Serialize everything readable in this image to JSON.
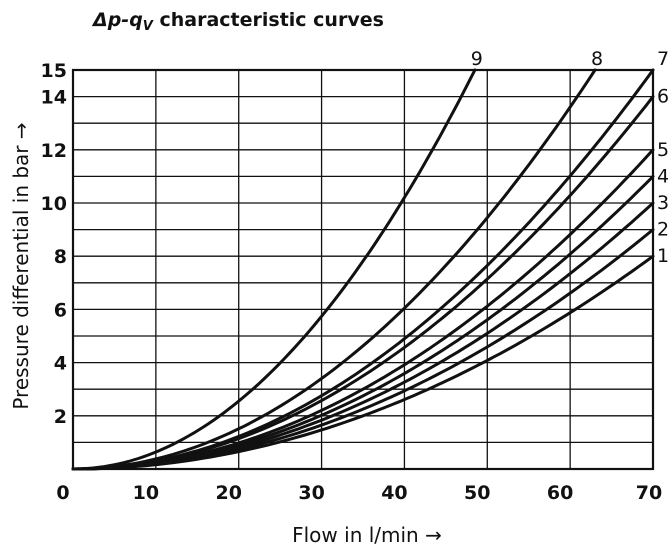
{
  "chart_data": {
    "type": "line",
    "title_main": "Δp-q",
    "title_sub": "V",
    "title_tail": " characteristic curves",
    "xlabel": "Flow in l/min →",
    "ylabel": "Pressure differential in bar →",
    "xlim": [
      0,
      70
    ],
    "ylim": [
      0,
      15
    ],
    "x_ticks": [
      0,
      10,
      20,
      30,
      40,
      50,
      60,
      70
    ],
    "y_ticks": [
      2,
      4,
      6,
      8,
      10,
      12,
      14,
      15
    ],
    "y_gridlines": [
      1,
      2,
      3,
      4,
      5,
      6,
      7,
      8,
      9,
      10,
      11,
      12,
      13,
      14,
      15
    ],
    "x_gridlines": [
      10,
      20,
      30,
      40,
      50,
      60,
      70
    ],
    "grid": true,
    "legend": "curve numbers at the top-right ends of curves",
    "series": [
      {
        "name": "1",
        "x": [
          0,
          10,
          20,
          30,
          40,
          50,
          60,
          70
        ],
        "values": [
          0,
          0.16,
          0.65,
          1.47,
          2.61,
          4.08,
          5.88,
          8.0
        ]
      },
      {
        "name": "2",
        "x": [
          0,
          10,
          20,
          30,
          40,
          50,
          60,
          70
        ],
        "values": [
          0,
          0.18,
          0.73,
          1.65,
          2.94,
          4.59,
          6.61,
          9.0
        ]
      },
      {
        "name": "3",
        "x": [
          0,
          10,
          20,
          30,
          40,
          50,
          60,
          70
        ],
        "values": [
          0,
          0.2,
          0.82,
          1.84,
          3.27,
          5.1,
          7.35,
          10.0
        ]
      },
      {
        "name": "4",
        "x": [
          0,
          10,
          20,
          30,
          40,
          50,
          60,
          70
        ],
        "values": [
          0,
          0.22,
          0.9,
          2.02,
          3.59,
          5.61,
          8.08,
          11.0
        ]
      },
      {
        "name": "5",
        "x": [
          0,
          10,
          20,
          30,
          40,
          50,
          60,
          70
        ],
        "values": [
          0,
          0.24,
          0.98,
          2.2,
          3.92,
          6.12,
          8.82,
          12.0
        ]
      },
      {
        "name": "6",
        "x": [
          0,
          10,
          20,
          30,
          40,
          50,
          60,
          70
        ],
        "values": [
          0,
          0.29,
          1.14,
          2.57,
          4.57,
          7.14,
          10.29,
          14.0
        ]
      },
      {
        "name": "7",
        "x": [
          0,
          10,
          20,
          30,
          40,
          50,
          60,
          70
        ],
        "values": [
          0,
          0.31,
          1.22,
          2.76,
          4.9,
          7.65,
          11.02,
          15.0
        ]
      },
      {
        "name": "8",
        "x": [
          0,
          10,
          20,
          30,
          40,
          50,
          60,
          63
        ],
        "values": [
          0,
          0.38,
          1.51,
          3.4,
          6.05,
          9.45,
          13.6,
          15.0
        ]
      },
      {
        "name": "9",
        "x": [
          0,
          10,
          20,
          30,
          40,
          48.5
        ],
        "values": [
          0,
          0.64,
          2.55,
          5.74,
          10.2,
          15.0
        ]
      }
    ]
  }
}
